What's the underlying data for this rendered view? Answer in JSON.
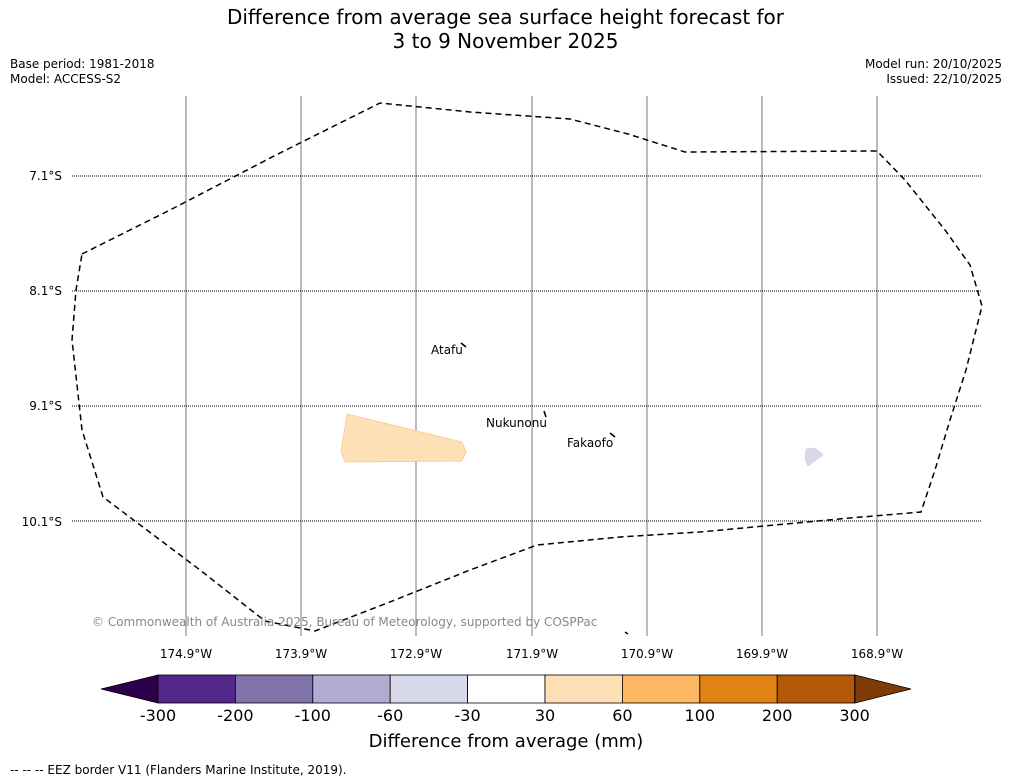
{
  "title_line1": "Difference from average sea surface height forecast for",
  "title_line2": "3 to 9 November 2025",
  "base_period": "Base period: 1981-2018",
  "model": "Model: ACCESS-S2",
  "model_run": "Model run: 20/10/2025",
  "issued": "Issued: 22/10/2025",
  "lat_labels": [
    "7.1°S",
    "8.1°S",
    "9.1°S",
    "10.1°S"
  ],
  "lon_labels": [
    "174.9°W",
    "173.9°W",
    "172.9°W",
    "171.9°W",
    "170.9°W",
    "169.9°W",
    "168.9°W"
  ],
  "islands": [
    "Atafu",
    "Nukunonu",
    "Fakaofo"
  ],
  "copyright": "© Commonwealth of Australia 2025, Bureau of Meteorology, supported by COSPPac",
  "colorbar": {
    "ticks": [
      "-300",
      "-200",
      "-100",
      "-60",
      "-30",
      "30",
      "60",
      "100",
      "200",
      "300"
    ],
    "colors": [
      "#2d004b",
      "#542788",
      "#8073ac",
      "#b2abd2",
      "#d8daeb",
      "#ffffff",
      "#fee0b6",
      "#fdb863",
      "#e08214",
      "#b35806",
      "#7f3b08"
    ],
    "title": "Difference from average (mm)"
  },
  "map_fill_colors": {
    "positive_patch": "#fee0b6",
    "negative_patch": "#d8daeb",
    "eez_border": "#000000"
  },
  "footnote": "--  --  -- EEZ border V11 (Flanders Marine Institute, 2019)."
}
